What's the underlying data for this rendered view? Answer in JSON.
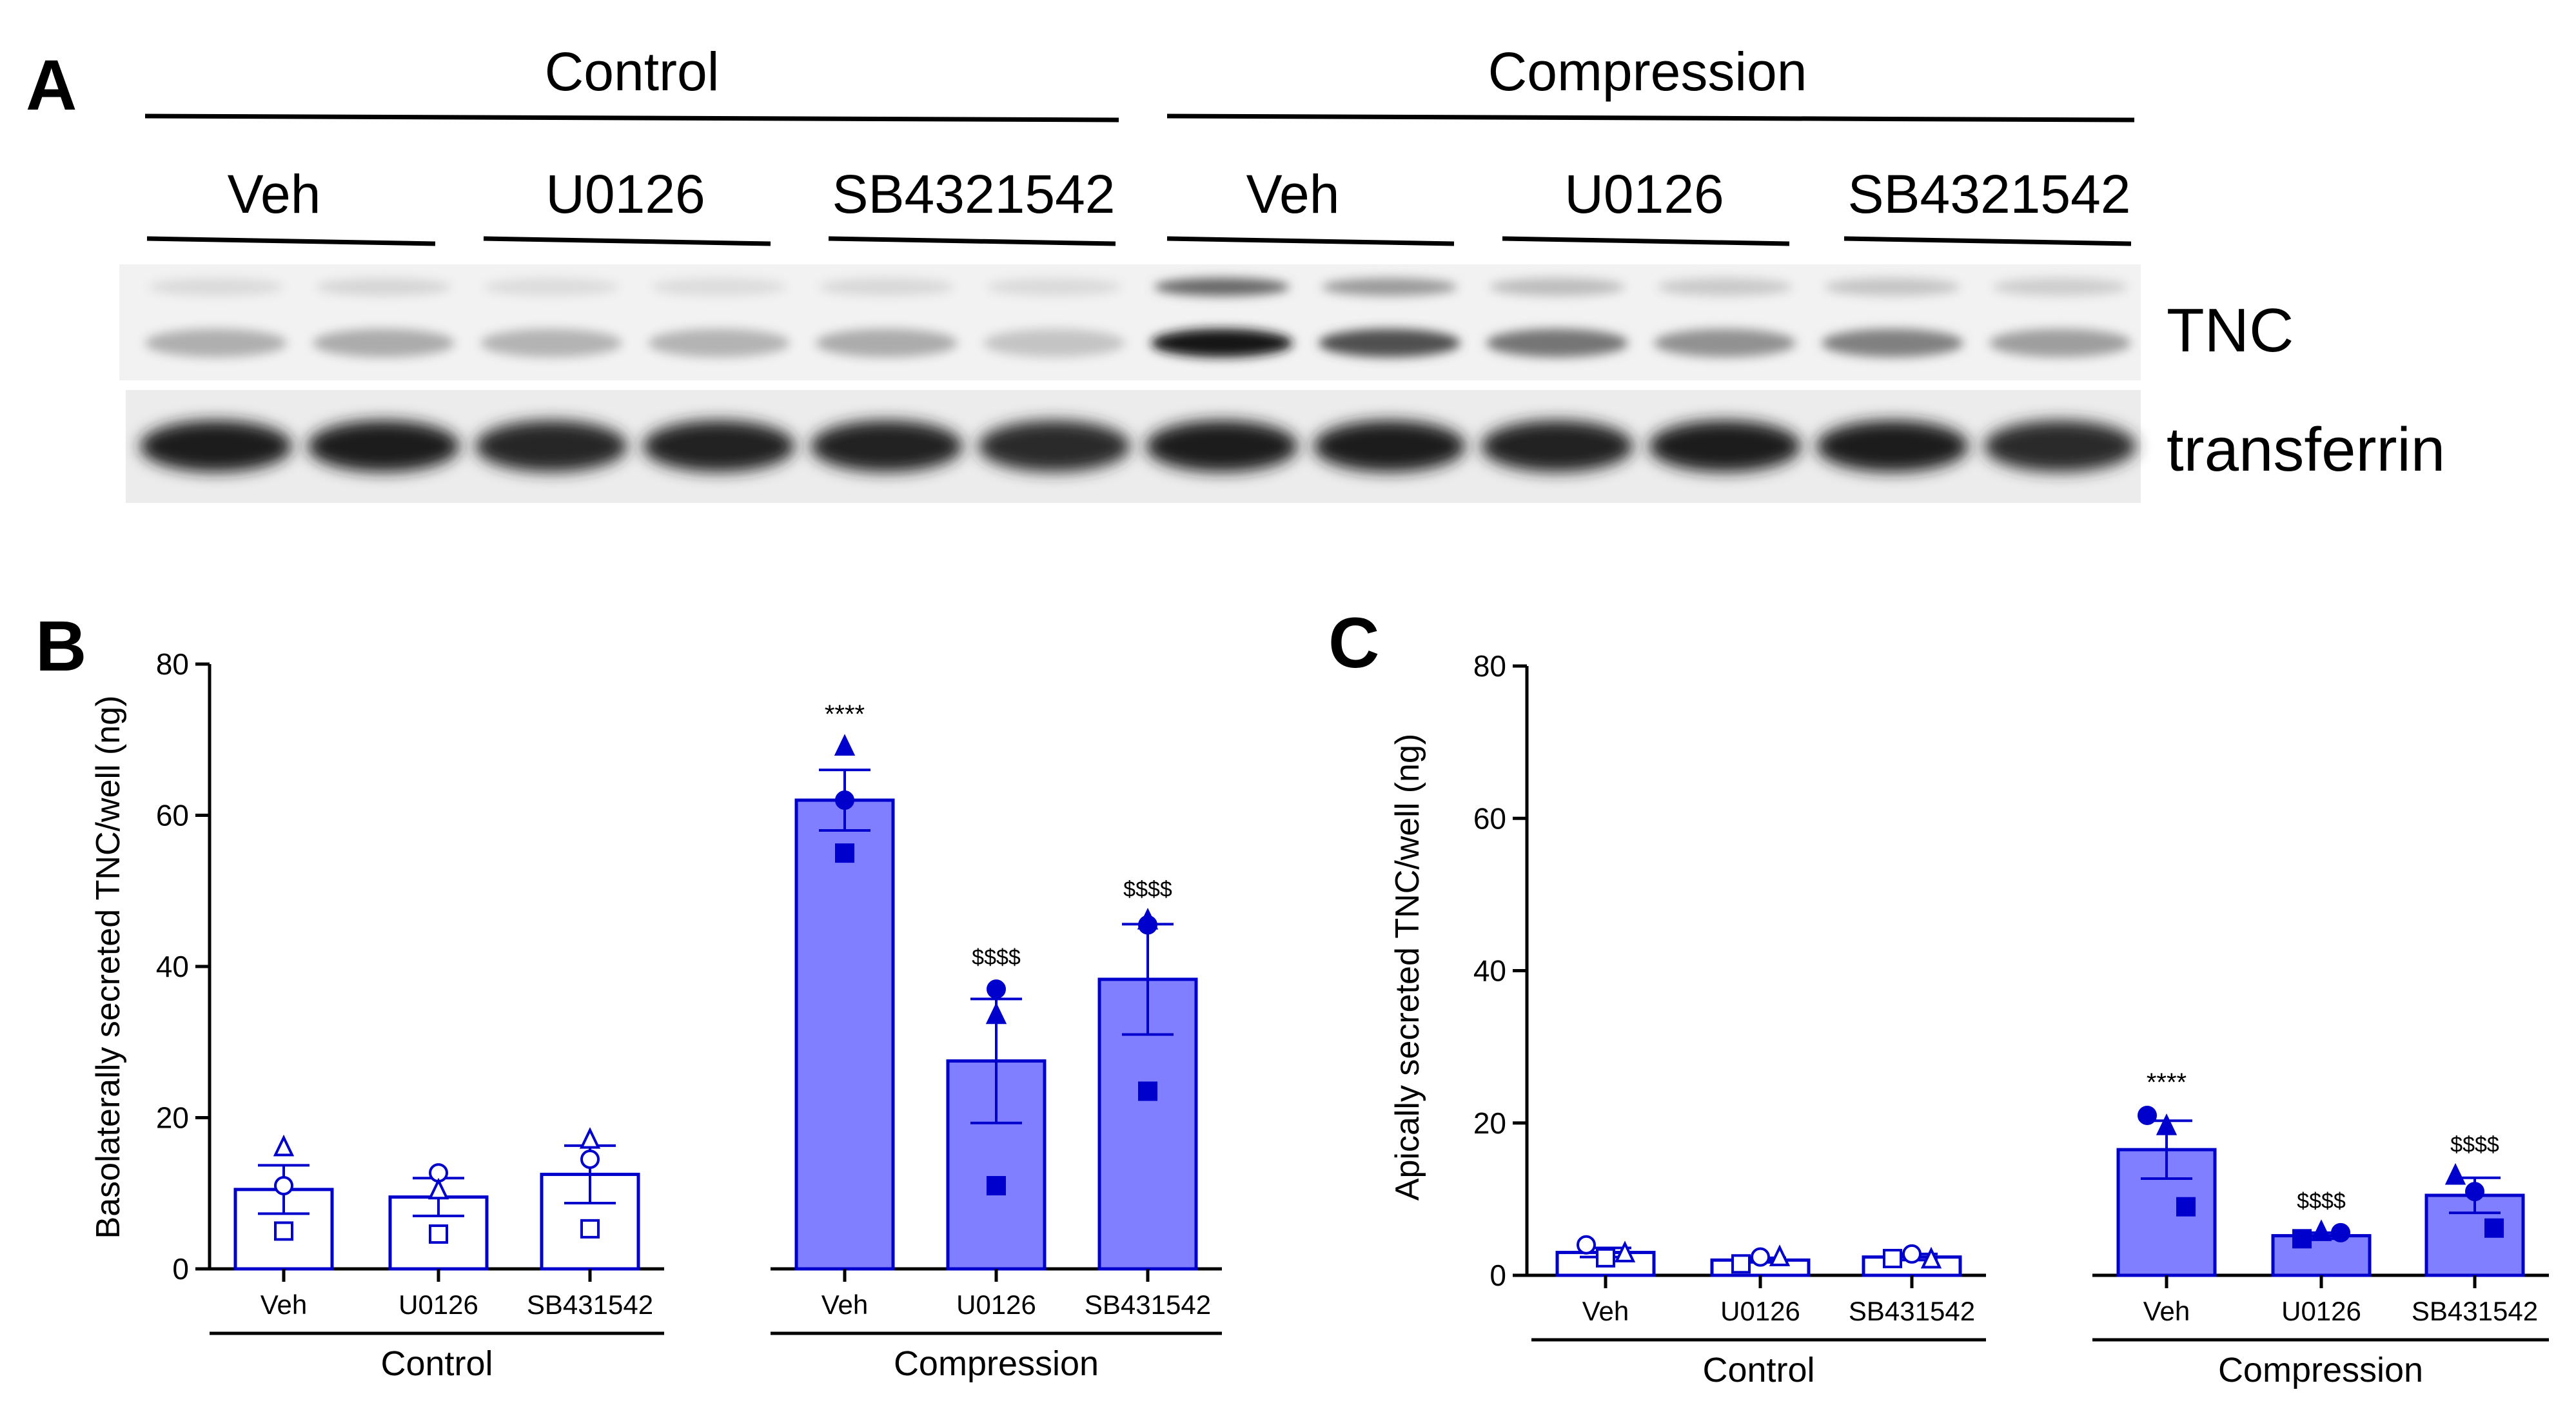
{
  "panel_a": {
    "letter": "A",
    "group_headers": [
      "Control",
      "Compression"
    ],
    "treatment_labels": [
      "Veh",
      "U0126",
      "SB4321542",
      "Veh",
      "U0126",
      "SB4321542"
    ],
    "blot_labels": [
      "TNC",
      "transferrin"
    ],
    "tnc_band_intensity": [
      0.28,
      0.3,
      0.26,
      0.26,
      0.3,
      0.18,
      0.98,
      0.72,
      0.55,
      0.42,
      0.5,
      0.36
    ],
    "tnc_upper_band_intensity": [
      0.08,
      0.1,
      0.07,
      0.07,
      0.09,
      0.08,
      0.62,
      0.38,
      0.22,
      0.16,
      0.18,
      0.14
    ],
    "transferrin_band_intensity": [
      0.95,
      0.95,
      0.92,
      0.93,
      0.93,
      0.9,
      0.96,
      0.95,
      0.93,
      0.95,
      0.96,
      0.9
    ]
  },
  "chart_data": [
    {
      "panel": "B",
      "type": "bar",
      "ylabel": "Basolaterally secreted TNC/well (ng)",
      "ylim": [
        0,
        80
      ],
      "yticks": [
        0,
        20,
        40,
        60,
        80
      ],
      "categories": [
        "Veh",
        "U0126",
        "SB431542",
        "Veh",
        "U0126",
        "SB431542"
      ],
      "groups": [
        {
          "name": "Control",
          "indices": [
            0,
            1,
            2
          ]
        },
        {
          "name": "Compression",
          "indices": [
            3,
            4,
            5
          ]
        }
      ],
      "values": [
        10.5,
        9.5,
        12.5,
        62,
        27.5,
        38.3
      ],
      "sem": [
        3.2,
        2.5,
        3.8,
        4.0,
        8.2,
        7.3
      ],
      "points": [
        [
          {
            "shape": "triangle",
            "y": 16
          },
          {
            "shape": "circle",
            "y": 11
          },
          {
            "shape": "square",
            "y": 5
          }
        ],
        [
          {
            "shape": "circle",
            "y": 12.7
          },
          {
            "shape": "triangle",
            "y": 10.3
          },
          {
            "shape": "square",
            "y": 4.6
          }
        ],
        [
          {
            "shape": "triangle",
            "y": 17
          },
          {
            "shape": "circle",
            "y": 14.5
          },
          {
            "shape": "square",
            "y": 5.3
          }
        ],
        [
          {
            "shape": "triangle",
            "y": 69
          },
          {
            "shape": "circle",
            "y": 62
          },
          {
            "shape": "square",
            "y": 55
          }
        ],
        [
          {
            "shape": "circle",
            "y": 37
          },
          {
            "shape": "triangle",
            "y": 33.5
          },
          {
            "shape": "square",
            "y": 11
          }
        ],
        [
          {
            "shape": "triangle",
            "y": 46
          },
          {
            "shape": "circle",
            "y": 45.5
          },
          {
            "shape": "square",
            "y": 23.5
          }
        ]
      ],
      "annotations": [
        "",
        "",
        "",
        "****",
        "$$$$",
        "$$$$"
      ],
      "colors": {
        "control_fill": "#ffffff",
        "compression_fill": "#7f7fff",
        "edge": "#0000cc",
        "marker": "#0000cc"
      }
    },
    {
      "panel": "C",
      "type": "bar",
      "ylabel": "Apically secreted TNC/well (ng)",
      "ylim": [
        0,
        80
      ],
      "yticks": [
        0,
        20,
        40,
        60,
        80
      ],
      "categories": [
        "Veh",
        "U0126",
        "SB431542",
        "Veh",
        "U0126",
        "SB431542"
      ],
      "groups": [
        {
          "name": "Control",
          "indices": [
            0,
            1,
            2
          ]
        },
        {
          "name": "Compression",
          "indices": [
            3,
            4,
            5
          ]
        }
      ],
      "values": [
        3.0,
        2.0,
        2.4,
        16.5,
        5.2,
        10.5
      ],
      "sem": [
        0.6,
        0.3,
        0.4,
        3.8,
        0.4,
        2.3
      ],
      "points": [
        [
          {
            "shape": "circle",
            "y": 4.0
          },
          {
            "shape": "square",
            "y": 2.3
          },
          {
            "shape": "triangle",
            "y": 2.8
          }
        ],
        [
          {
            "shape": "square",
            "y": 1.5
          },
          {
            "shape": "circle",
            "y": 2.4
          },
          {
            "shape": "triangle",
            "y": 2.3
          }
        ],
        [
          {
            "shape": "square",
            "y": 2.2
          },
          {
            "shape": "circle",
            "y": 2.8
          },
          {
            "shape": "triangle",
            "y": 2.0
          }
        ],
        [
          {
            "shape": "circle",
            "y": 21
          },
          {
            "shape": "triangle",
            "y": 19.5
          },
          {
            "shape": "square",
            "y": 9.0
          }
        ],
        [
          {
            "shape": "square",
            "y": 4.8
          },
          {
            "shape": "triangle",
            "y": 5.6
          },
          {
            "shape": "circle",
            "y": 5.6
          }
        ],
        [
          {
            "shape": "triangle",
            "y": 13.0
          },
          {
            "shape": "circle",
            "y": 11.0
          },
          {
            "shape": "square",
            "y": 6.2
          }
        ]
      ],
      "annotations": [
        "",
        "",
        "",
        "****",
        "$$$$",
        "$$$$"
      ],
      "colors": {
        "control_fill": "#ffffff",
        "compression_fill": "#7f7fff",
        "edge": "#0000cc",
        "marker": "#0000cc"
      }
    }
  ]
}
